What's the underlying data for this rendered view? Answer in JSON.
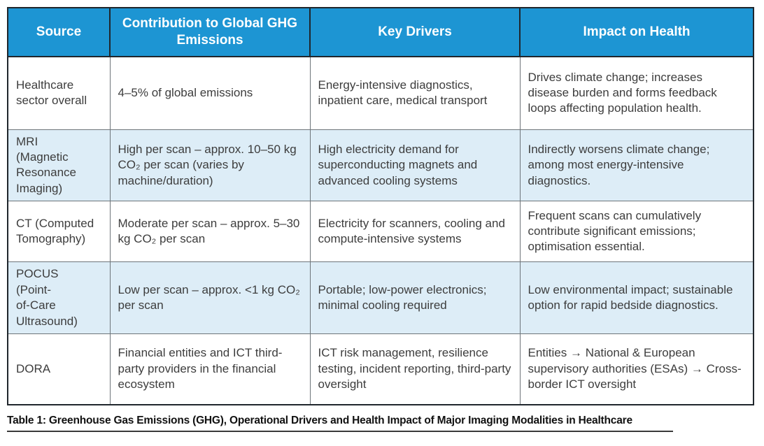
{
  "table": {
    "headers": [
      "Source",
      "Contribution to Global GHG Emissions",
      "Key Drivers",
      "Impact on Health"
    ],
    "rows": [
      {
        "source": "Healthcare\nsector overall",
        "contribution": "4–5% of global emissions",
        "drivers": "Energy-intensive diagnostics, inpatient care, medical transport",
        "impact": "Drives climate change; increases disease burden and forms feedback loops affecting population health."
      },
      {
        "source": "MRI\n(Magnetic\nResonance\nImaging)",
        "contribution": "High per scan – approx. 10–50 kg CO₂ per scan (varies by machine/duration)",
        "drivers": "High electricity demand for superconducting magnets and advanced cooling systems",
        "impact": "Indirectly worsens climate change; among most energy-intensive diagnostics."
      },
      {
        "source": "CT (Computed\nTomography)",
        "contribution": "Moderate per scan – approx. 5–30 kg CO₂ per scan",
        "drivers": "Electricity for scanners, cooling and compute-intensive systems",
        "impact": "Frequent scans can cumulatively contribute significant emissions; optimisation essential."
      },
      {
        "source": "POCUS\n(Point-\nof-Care\nUltrasound)",
        "contribution": "Low per scan – approx. <1 kg CO₂ per scan",
        "drivers": "Portable; low-power electronics; minimal cooling required",
        "impact": "Low environmental impact; sustainable option for rapid bedside diagnostics."
      },
      {
        "source": "DORA",
        "contribution": "Financial entities and ICT third-party providers in the financial ecosystem",
        "drivers": "ICT risk management, resilience testing, incident reporting, third-party oversight",
        "impact": "Entities → National & European supervisory authorities (ESAs) → Cross-border ICT oversight"
      }
    ]
  },
  "caption": "Table 1: Greenhouse Gas Emissions (GHG), Operational Drivers and Health Impact of Major Imaging Modalities in Healthcare",
  "colors": {
    "header_background": "#1d95d3",
    "header_text": "#ffffff",
    "alt_row_background": "#ddedf7",
    "row_background": "#ffffff",
    "body_text": "#3d3d3d",
    "outer_border": "#20262c",
    "inner_grid": "#6e757a",
    "caption_rule": "#3a3a3a"
  }
}
